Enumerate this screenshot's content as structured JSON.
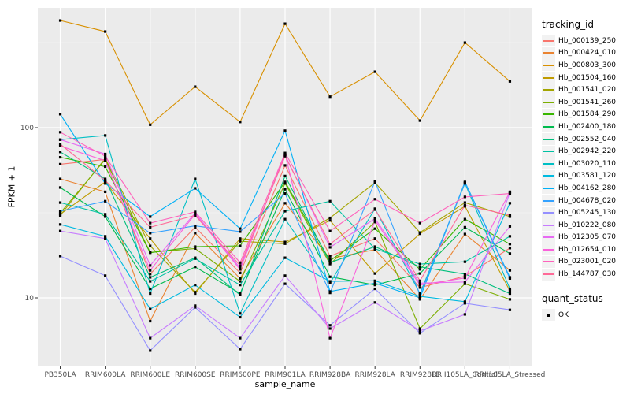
{
  "axes": {
    "x_title": "sample_name",
    "y_title": "FPKM + 1",
    "y_ticks": [
      {
        "value": 100,
        "label": "100"
      },
      {
        "value": 10,
        "label": "10"
      }
    ]
  },
  "legend": {
    "tracking_title": "tracking_id",
    "quant_title": "quant_status",
    "quant_ok_label": "OK"
  },
  "chart_data": {
    "type": "line",
    "title": "",
    "xlabel": "sample_name",
    "ylabel": "FPKM + 1",
    "yscale": "log10",
    "ylim": [
      4,
      505
    ],
    "grid": "on",
    "legend_position": "right",
    "point_shape": "square",
    "point_color": "#000000",
    "panel_background": "#EBEBEB",
    "x_categories": [
      "PB350LA",
      "RRIM600LA",
      "RRIM600LE",
      "RRIM600SE",
      "RRIM600PE",
      "RRIM901LA",
      "RRIM928BA",
      "RRIM928LA",
      "RRIM928LE",
      "RRII105LA_Control",
      "RRII105LA_Stressed"
    ],
    "series": [
      {
        "name": "Hb_000139_250",
        "color": "#F8766D",
        "values": [
          61,
          65,
          13.8,
          26,
          14,
          60,
          17.6,
          22.3,
          11.5,
          13.4,
          19.6
        ]
      },
      {
        "name": "Hb_000424_010",
        "color": "#EA8331",
        "values": [
          50,
          42,
          7.3,
          24,
          13,
          36,
          17,
          19.2,
          9.8,
          23.7,
          14.5
        ]
      },
      {
        "name": "Hb_000803_300",
        "color": "#D89000",
        "values": [
          426,
          367,
          104,
          174,
          108,
          408,
          152,
          213,
          110,
          316,
          187
        ]
      },
      {
        "name": "Hb_001504_160",
        "color": "#C09B00",
        "values": [
          31,
          48,
          22.3,
          10.6,
          22.3,
          21.3,
          28.5,
          13.9,
          23.8,
          34.5,
          11
        ]
      },
      {
        "name": "Hb_001541_020",
        "color": "#A3A500",
        "values": [
          30.5,
          66,
          20.2,
          10.8,
          21.5,
          20.8,
          29.5,
          47.5,
          24.2,
          36.3,
          30
        ]
      },
      {
        "name": "Hb_001541_260",
        "color": "#7CAE00",
        "values": [
          31.5,
          65,
          18.5,
          19.5,
          12.5,
          47,
          15.8,
          27.9,
          6.6,
          12.1,
          9.8
        ]
      },
      {
        "name": "Hb_001584_290",
        "color": "#39B600",
        "values": [
          67,
          59,
          18.4,
          20,
          20.2,
          48,
          16.5,
          25.5,
          14.7,
          29,
          20.7
        ]
      },
      {
        "name": "Hb_002400_180",
        "color": "#00BB4E",
        "values": [
          44.5,
          30,
          11.3,
          15.2,
          10.6,
          43.5,
          13.3,
          11.9,
          13.9,
          26,
          18.2
        ]
      },
      {
        "name": "Hb_002552_040",
        "color": "#00BF7D",
        "values": [
          72,
          50,
          13.2,
          17.2,
          10.4,
          52,
          16.1,
          20,
          15.2,
          13.8,
          10.6
        ]
      },
      {
        "name": "Hb_002942_220",
        "color": "#00C1A3",
        "values": [
          36.3,
          31,
          12.5,
          17,
          11.9,
          32.3,
          37,
          19.4,
          15.8,
          16.3,
          23
        ]
      },
      {
        "name": "Hb_003020_110",
        "color": "#00BFC4",
        "values": [
          85,
          90,
          10.6,
          50,
          8.1,
          29,
          12.2,
          33.4,
          10.6,
          47,
          11.3
        ]
      },
      {
        "name": "Hb_003581_120",
        "color": "#00BAE0",
        "values": [
          27,
          23,
          8.6,
          11.9,
          7.7,
          17.2,
          12.5,
          12.6,
          10.2,
          9.5,
          36
        ]
      },
      {
        "name": "Hb_004162_280",
        "color": "#00B0F6",
        "values": [
          120,
          47,
          30,
          44,
          25.5,
          96,
          10.9,
          12.2,
          10,
          48,
          13.2
        ]
      },
      {
        "name": "Hb_004678_020",
        "color": "#35A2FF",
        "values": [
          32.3,
          37,
          24,
          26.5,
          24.5,
          41,
          10.7,
          48.4,
          10.4,
          47.5,
          13
        ]
      },
      {
        "name": "Hb_005245_130",
        "color": "#9590FF",
        "values": [
          17.6,
          13.5,
          4.9,
          8.8,
          5,
          12.1,
          6.9,
          11.3,
          6.2,
          9.3,
          8.5
        ]
      },
      {
        "name": "Hb_010222_080",
        "color": "#C77CFF",
        "values": [
          24.7,
          22.3,
          5.8,
          9,
          5.8,
          13.5,
          6.6,
          9.4,
          6.4,
          8,
          41.5
        ]
      },
      {
        "name": "Hb_012305_070",
        "color": "#E76BF3",
        "values": [
          85,
          70,
          15.5,
          31.5,
          15,
          69,
          19.8,
          29.2,
          12.2,
          12.4,
          26.3
        ]
      },
      {
        "name": "Hb_012654_010",
        "color": "#FA62DB",
        "values": [
          78,
          64,
          14.5,
          31,
          14.7,
          70,
          5.8,
          28.4,
          11.9,
          13.1,
          42
        ]
      },
      {
        "name": "Hb_023001_020",
        "color": "#FF62BC",
        "values": [
          94,
          68,
          27.5,
          32,
          16.1,
          71,
          24.7,
          38,
          27.5,
          39.2,
          41
        ]
      },
      {
        "name": "Hb_144787_030",
        "color": "#FF6A98",
        "values": [
          80,
          49,
          26,
          30.5,
          15.5,
          68,
          20.7,
          33,
          12.6,
          35,
          30.6
        ]
      }
    ],
    "quant_status_values": [
      "OK"
    ]
  }
}
